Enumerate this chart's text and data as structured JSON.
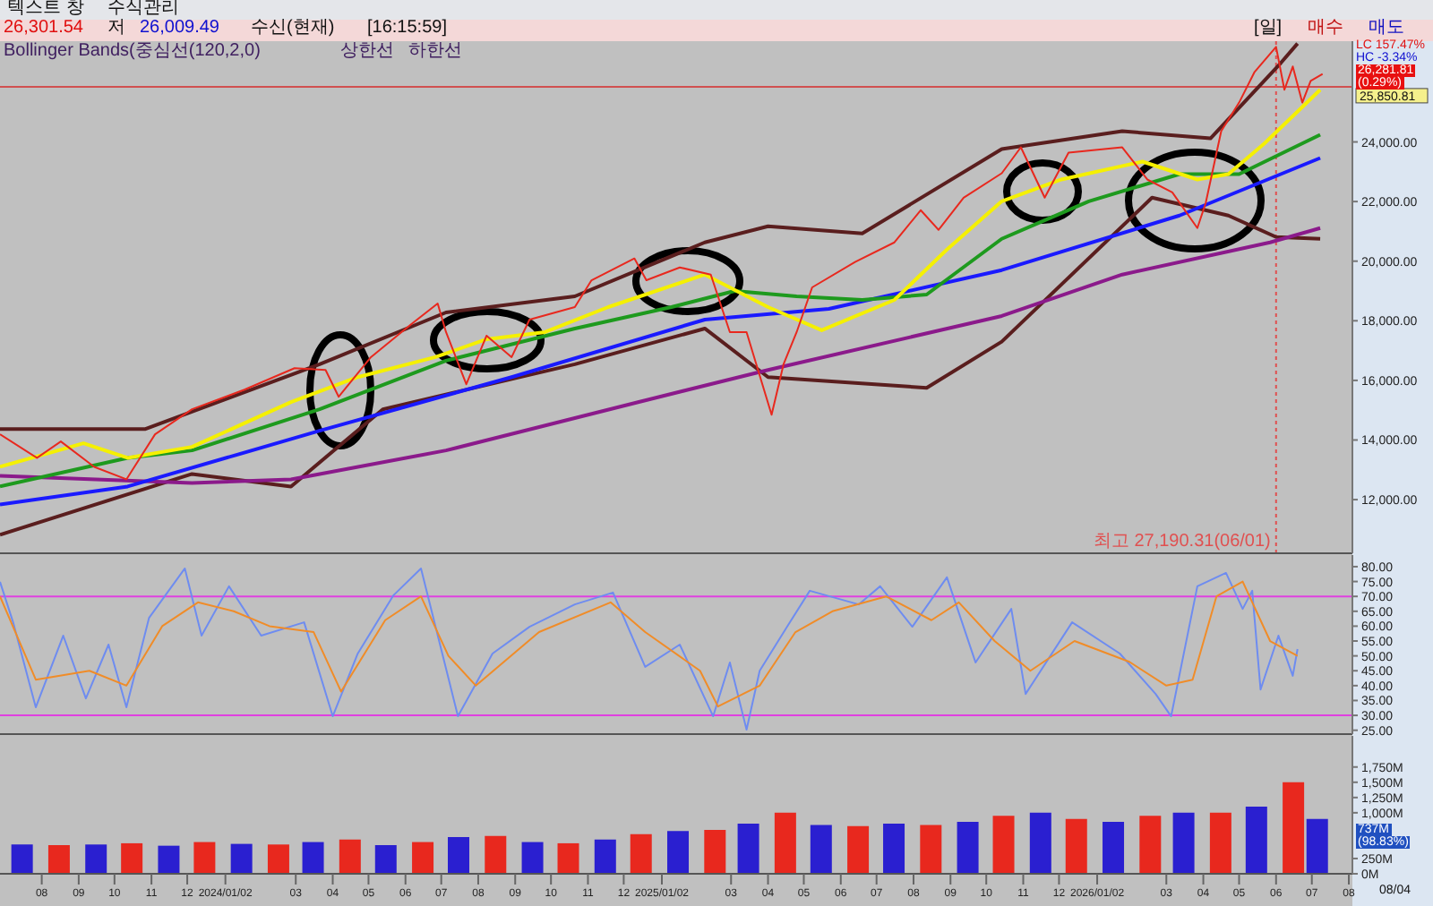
{
  "chart_data": [
    {
      "type": "line",
      "marker": "none",
      "tick_labels": "y",
      "xlim": [
        "2023-06-27",
        "2026-08-04"
      ],
      "ylim": [
        10200,
        27380
      ],
      "yticks": [
        {
          "value": 12000,
          "label": "12,000.00"
        },
        {
          "value": 14000,
          "label": "14,000.00"
        },
        {
          "value": 16000,
          "label": "16,000.00"
        },
        {
          "value": 18000,
          "label": "18,000.00"
        },
        {
          "value": 20000,
          "label": "20,000.00"
        },
        {
          "value": 22000,
          "label": "22,000.00"
        },
        {
          "value": 24000,
          "label": "24,000.00"
        }
      ],
      "series": [
        {
          "color": "#5a1e1e",
          "x": [
            "2023-06-27",
            "2023-10-27",
            "2024-03-21",
            "2024-07-05",
            "2024-10-21",
            "2025-02-07",
            "2025-04-01",
            "2025-06-19",
            "2025-10-14",
            "2026-01-23",
            "2026-04-07",
            "2026-06-05",
            "2026-06-19"
          ],
          "values": [
            14370,
            14370,
            16540,
            18280,
            18820,
            20630,
            21170,
            20930,
            23760,
            24360,
            24120,
            26650,
            27300
          ]
        },
        {
          "color": "#5a1e1e",
          "x": [
            "2023-06-27",
            "2023-12-05",
            "2024-02-26",
            "2024-05-13",
            "2024-10-21",
            "2025-02-07",
            "2025-04-01",
            "2025-08-12",
            "2025-10-14",
            "2026-02-17",
            "2026-04-22",
            "2026-06-01",
            "2026-07-08"
          ],
          "values": [
            10820,
            12860,
            12440,
            15030,
            16540,
            17740,
            16110,
            15750,
            17300,
            22130,
            21530,
            20810,
            20750
          ]
        },
        {
          "color": "#8b1a8b",
          "x": [
            "2023-06-27",
            "2023-12-05",
            "2024-02-26",
            "2024-07-05",
            "2024-12-13",
            "2025-04-01",
            "2025-10-14",
            "2026-01-23",
            "2026-05-27",
            "2026-07-08"
          ],
          "values": [
            12800,
            12560,
            12680,
            13650,
            15270,
            16350,
            18160,
            19550,
            20630,
            21110
          ]
        },
        {
          "color": "#1a1aff",
          "x": [
            "2023-06-27",
            "2023-10-12",
            "2024-03-21",
            "2024-08-29",
            "2025-02-07",
            "2025-05-22",
            "2025-10-14",
            "2026-03-12",
            "2026-07-08"
          ],
          "values": [
            11840,
            12440,
            14310,
            16110,
            18040,
            18400,
            19700,
            21530,
            23460
          ]
        },
        {
          "color": "#1e9a1e",
          "x": [
            "2023-06-27",
            "2023-10-12",
            "2023-12-05",
            "2024-03-21",
            "2024-07-05",
            "2024-10-21",
            "2025-01-10",
            "2025-03-04",
            "2025-04-25",
            "2025-06-19",
            "2025-08-12",
            "2025-10-14",
            "2025-12-26",
            "2026-03-12",
            "2026-05-01",
            "2026-07-08"
          ],
          "values": [
            12440,
            13400,
            13650,
            15030,
            16660,
            17740,
            18460,
            19000,
            18820,
            18700,
            18880,
            20750,
            22010,
            22920,
            22920,
            24240
          ]
        },
        {
          "color": "#f5f000",
          "x": [
            "2023-06-27",
            "2023-09-05",
            "2023-10-12",
            "2023-12-05",
            "2024-02-26",
            "2024-04-22",
            "2024-06-26",
            "2024-08-08",
            "2024-09-26",
            "2024-11-18",
            "2025-02-07",
            "2025-04-01",
            "2025-05-16",
            "2025-07-16",
            "2025-08-29",
            "2025-10-14",
            "2025-12-03",
            "2026-02-09",
            "2026-03-27",
            "2026-04-22",
            "2026-05-22",
            "2026-07-08"
          ],
          "values": [
            13100,
            13890,
            13400,
            13770,
            15270,
            16110,
            16780,
            17380,
            17620,
            18460,
            19550,
            18460,
            17680,
            18700,
            20390,
            22010,
            22740,
            23340,
            22740,
            22920,
            23940,
            25750
          ]
        },
        {
          "color": "#e8281e",
          "x": [
            "2023-06-27",
            "2023-07-28",
            "2023-08-17",
            "2023-09-14",
            "2023-10-11",
            "2023-11-04",
            "2023-12-05",
            "2024-01-18",
            "2024-02-29",
            "2024-03-26",
            "2024-04-06",
            "2024-05-03",
            "2024-06-05",
            "2024-06-28",
            "2024-07-05",
            "2024-07-22",
            "2024-08-08",
            "2024-08-29",
            "2024-09-13",
            "2024-10-21",
            "2024-11-04",
            "2024-12-10",
            "2024-12-20",
            "2025-01-17",
            "2025-02-12",
            "2025-02-28",
            "2025-03-14",
            "2025-04-04",
            "2025-04-14",
            "2025-04-25",
            "2025-05-08",
            "2025-06-13",
            "2025-07-16",
            "2025-08-07",
            "2025-08-22",
            "2025-09-12",
            "2025-10-14",
            "2025-10-30",
            "2025-11-19",
            "2025-12-09",
            "2026-01-23",
            "2026-02-13",
            "2026-03-06",
            "2026-03-27",
            "2026-04-03",
            "2026-04-16",
            "2026-05-01",
            "2026-05-14",
            "2026-06-01",
            "2026-06-08",
            "2026-06-15",
            "2026-06-23",
            "2026-06-30",
            "2026-07-10"
          ],
          "values": [
            14190,
            13400,
            13950,
            13100,
            12680,
            14190,
            15030,
            15690,
            16410,
            16350,
            15450,
            16780,
            17860,
            18580,
            17620,
            15870,
            17500,
            16780,
            18040,
            18460,
            19360,
            20090,
            19360,
            19790,
            19550,
            17620,
            17620,
            14850,
            16540,
            17620,
            19120,
            19970,
            20630,
            21710,
            21050,
            22130,
            22950,
            23820,
            22130,
            23640,
            23820,
            22740,
            22310,
            21110,
            21950,
            24360,
            25320,
            26350,
            27190,
            25750,
            26530,
            25320,
            26050,
            26280
          ]
        }
      ],
      "ref_lines": [
        {
          "axis": "y",
          "value": 25850.81,
          "label": "25,850.81",
          "color": "#d05050",
          "line_style": "solid"
        },
        {
          "axis": "x",
          "value": "2026-06-01",
          "label": "최고 27,190.31(06/01)",
          "color": "#e05050",
          "line_style": "dotted"
        }
      ],
      "annotations": [
        "26,301.54",
        "저",
        "26,009.49",
        "수신(현재)",
        "[16:15:59]",
        "Bollinger Bands(중심선(120,2,0)",
        "상한선",
        "하한선",
        "LC 157.47%",
        "HC -3.34%",
        "26,281.81",
        "(0.29%)",
        "텍스트 창",
        "수식관리",
        "[일]",
        "매수",
        "매도"
      ]
    },
    {
      "type": "line",
      "marker": "none",
      "tick_labels": "y",
      "xlim": [
        "2023-06-27",
        "2026-08-04"
      ],
      "ylim": [
        23.7,
        83.9
      ],
      "yticks": [
        {
          "value": 25,
          "label": "25.00"
        },
        {
          "value": 30,
          "label": "30.00"
        },
        {
          "value": 35,
          "label": "35.00"
        },
        {
          "value": 40,
          "label": "40.00"
        },
        {
          "value": 45,
          "label": "45.00"
        },
        {
          "value": 50,
          "label": "50.00"
        },
        {
          "value": 55,
          "label": "55.00"
        },
        {
          "value": 60,
          "label": "60.00"
        },
        {
          "value": 65,
          "label": "65.00"
        },
        {
          "value": 70,
          "label": "70.00"
        },
        {
          "value": 75,
          "label": "75.00"
        },
        {
          "value": 80,
          "label": "80.00"
        }
      ],
      "series": [
        {
          "color": "#6e8cf0",
          "x": [
            "2023-06-27",
            "2023-07-08",
            "2023-07-27",
            "2023-08-19",
            "2023-09-07",
            "2023-09-26",
            "2023-10-11",
            "2023-10-30",
            "2023-11-29",
            "2023-12-13",
            "2024-01-05",
            "2024-02-01",
            "2024-03-08",
            "2024-04-01",
            "2024-04-22",
            "2024-05-22",
            "2024-06-14",
            "2024-07-15",
            "2024-08-13",
            "2024-09-13",
            "2024-10-21",
            "2024-11-22",
            "2024-12-19",
            "2025-01-17",
            "2025-02-14",
            "2025-02-28",
            "2025-03-14",
            "2025-03-25",
            "2025-04-17",
            "2025-05-06",
            "2025-06-16",
            "2025-07-04",
            "2025-07-31",
            "2025-08-29",
            "2025-09-22",
            "2025-10-22",
            "2025-11-03",
            "2025-12-12",
            "2026-01-21",
            "2026-02-20",
            "2026-03-05",
            "2026-03-27",
            "2026-04-20",
            "2026-05-04",
            "2026-05-12",
            "2026-05-19",
            "2026-06-03",
            "2026-06-15",
            "2026-06-19"
          ],
          "values": [
            74.9,
            61.3,
            32.7,
            56.8,
            35.7,
            53.8,
            32.7,
            62.8,
            79.4,
            56.8,
            73.4,
            56.8,
            61.3,
            29.7,
            50.8,
            70.4,
            79.4,
            29.7,
            50.8,
            59.8,
            67.3,
            71.3,
            46.3,
            53.8,
            29.7,
            47.8,
            25.2,
            45,
            59.8,
            71.9,
            67.3,
            73.4,
            59.8,
            76.4,
            47.8,
            65.8,
            37.2,
            61.3,
            50.8,
            37.2,
            29.7,
            73.4,
            77.9,
            65.8,
            71.9,
            38.7,
            56.8,
            43.3,
            52.3
          ]
        },
        {
          "color": "#f08c28",
          "x": [
            "2023-06-27",
            "2023-07-27",
            "2023-09-10",
            "2023-10-11",
            "2023-11-10",
            "2023-12-10",
            "2024-01-09",
            "2024-02-08",
            "2024-03-16",
            "2024-04-08",
            "2024-05-15",
            "2024-06-14",
            "2024-07-07",
            "2024-07-30",
            "2024-09-21",
            "2024-11-20",
            "2024-12-19",
            "2025-02-03",
            "2025-02-18",
            "2025-03-25",
            "2025-04-24",
            "2025-05-25",
            "2025-07-09",
            "2025-08-16",
            "2025-09-08",
            "2025-10-08",
            "2025-11-07",
            "2025-12-14",
            "2026-01-29",
            "2026-03-01",
            "2026-03-23",
            "2026-04-12",
            "2026-05-04",
            "2026-05-27",
            "2026-06-19"
          ],
          "values": [
            70,
            42,
            45,
            40,
            60,
            68,
            65,
            60,
            58,
            38,
            62,
            70,
            50,
            40,
            58,
            68,
            58,
            45,
            33,
            40,
            58,
            65,
            70,
            62,
            68,
            55,
            45,
            55,
            48,
            40,
            42,
            70,
            75,
            55,
            50
          ]
        }
      ],
      "ref_lines": [
        {
          "axis": "y",
          "value": 70,
          "color": "#e040e0"
        },
        {
          "axis": "y",
          "value": 30,
          "color": "#e040e0"
        }
      ]
    },
    {
      "type": "bar",
      "xlim": [
        "2023-06-27",
        "2026-08-04"
      ],
      "xticks": [
        {
          "value": "2023-08-01",
          "label": "08"
        },
        {
          "value": "2023-09-01",
          "label": "09"
        },
        {
          "value": "2023-10-01",
          "label": "10"
        },
        {
          "value": "2023-11-01",
          "label": "11"
        },
        {
          "value": "2023-12-01",
          "label": "12"
        },
        {
          "value": "2024-01-02",
          "label": "2024/01/02"
        },
        {
          "value": "2024-03-01",
          "label": "03"
        },
        {
          "value": "2024-04-01",
          "label": "04"
        },
        {
          "value": "2024-05-01",
          "label": "05"
        },
        {
          "value": "2024-06-01",
          "label": "06"
        },
        {
          "value": "2024-07-01",
          "label": "07"
        },
        {
          "value": "2024-08-01",
          "label": "08"
        },
        {
          "value": "2024-09-01",
          "label": "09"
        },
        {
          "value": "2024-10-01",
          "label": "10"
        },
        {
          "value": "2024-11-01",
          "label": "11"
        },
        {
          "value": "2024-12-01",
          "label": "12"
        },
        {
          "value": "2025-01-02",
          "label": "2025/01/02"
        },
        {
          "value": "2025-03-01",
          "label": "03"
        },
        {
          "value": "2025-04-01",
          "label": "04"
        },
        {
          "value": "2025-05-01",
          "label": "05"
        },
        {
          "value": "2025-06-01",
          "label": "06"
        },
        {
          "value": "2025-07-01",
          "label": "07"
        },
        {
          "value": "2025-08-01",
          "label": "08"
        },
        {
          "value": "2025-09-01",
          "label": "09"
        },
        {
          "value": "2025-10-01",
          "label": "10"
        },
        {
          "value": "2025-11-01",
          "label": "11"
        },
        {
          "value": "2025-12-01",
          "label": "12"
        },
        {
          "value": "2026-01-02",
          "label": "2026/01/02"
        },
        {
          "value": "2026-03-01",
          "label": "03"
        },
        {
          "value": "2026-04-01",
          "label": "04"
        },
        {
          "value": "2026-05-01",
          "label": "05"
        },
        {
          "value": "2026-06-01",
          "label": "06"
        },
        {
          "value": "2026-07-01",
          "label": "07"
        },
        {
          "value": "2026-08-01",
          "label": "08"
        }
      ],
      "ylim": [
        0,
        2260
      ],
      "yticks": [
        {
          "value": 0,
          "label": "0M"
        },
        {
          "value": 250,
          "label": "250M"
        },
        {
          "value": 1000,
          "label": "1,000M"
        },
        {
          "value": 1250,
          "label": "1,250M"
        },
        {
          "value": 1500,
          "label": "1,500M"
        },
        {
          "value": 1750,
          "label": "1,750M"
        }
      ],
      "x": [
        "2023-07-15",
        "2023-08-15",
        "2023-09-15",
        "2023-10-15",
        "2023-11-15",
        "2023-12-15",
        "2024-01-15",
        "2024-02-15",
        "2024-03-15",
        "2024-04-15",
        "2024-05-15",
        "2024-06-15",
        "2024-07-15",
        "2024-08-15",
        "2024-09-15",
        "2024-10-15",
        "2024-11-15",
        "2024-12-15",
        "2025-01-15",
        "2025-02-15",
        "2025-03-15",
        "2025-04-15",
        "2025-05-15",
        "2025-06-15",
        "2025-07-15",
        "2025-08-15",
        "2025-09-15",
        "2025-10-15",
        "2025-11-15",
        "2025-12-15",
        "2026-01-15",
        "2026-02-15",
        "2026-03-15",
        "2026-04-15",
        "2026-05-15",
        "2026-06-15",
        "2026-07-05"
      ],
      "values": [
        480,
        470,
        480,
        500,
        460,
        520,
        490,
        480,
        520,
        560,
        470,
        520,
        600,
        620,
        520,
        500,
        560,
        650,
        700,
        720,
        820,
        1000,
        800,
        780,
        820,
        800,
        850,
        950,
        1000,
        900,
        850,
        950,
        1000,
        1000,
        1100,
        1500,
        900
      ],
      "colors": [
        "#2a1fd0",
        "#e8281e",
        "#2a1fd0",
        "#e8281e",
        "#2a1fd0",
        "#e8281e",
        "#2a1fd0",
        "#e8281e",
        "#2a1fd0",
        "#e8281e",
        "#2a1fd0",
        "#e8281e",
        "#2a1fd0",
        "#e8281e",
        "#2a1fd0",
        "#e8281e",
        "#2a1fd0",
        "#e8281e",
        "#2a1fd0",
        "#e8281e",
        "#2a1fd0",
        "#e8281e",
        "#2a1fd0",
        "#e8281e",
        "#2a1fd0",
        "#e8281e",
        "#2a1fd0",
        "#e8281e",
        "#2a1fd0",
        "#e8281e",
        "#2a1fd0",
        "#e8281e",
        "#2a1fd0",
        "#e8281e",
        "#2a1fd0",
        "#e8281e",
        "#2a1fd0"
      ],
      "annotations": [
        "737M",
        "(98.83%)",
        "08/04"
      ]
    }
  ]
}
